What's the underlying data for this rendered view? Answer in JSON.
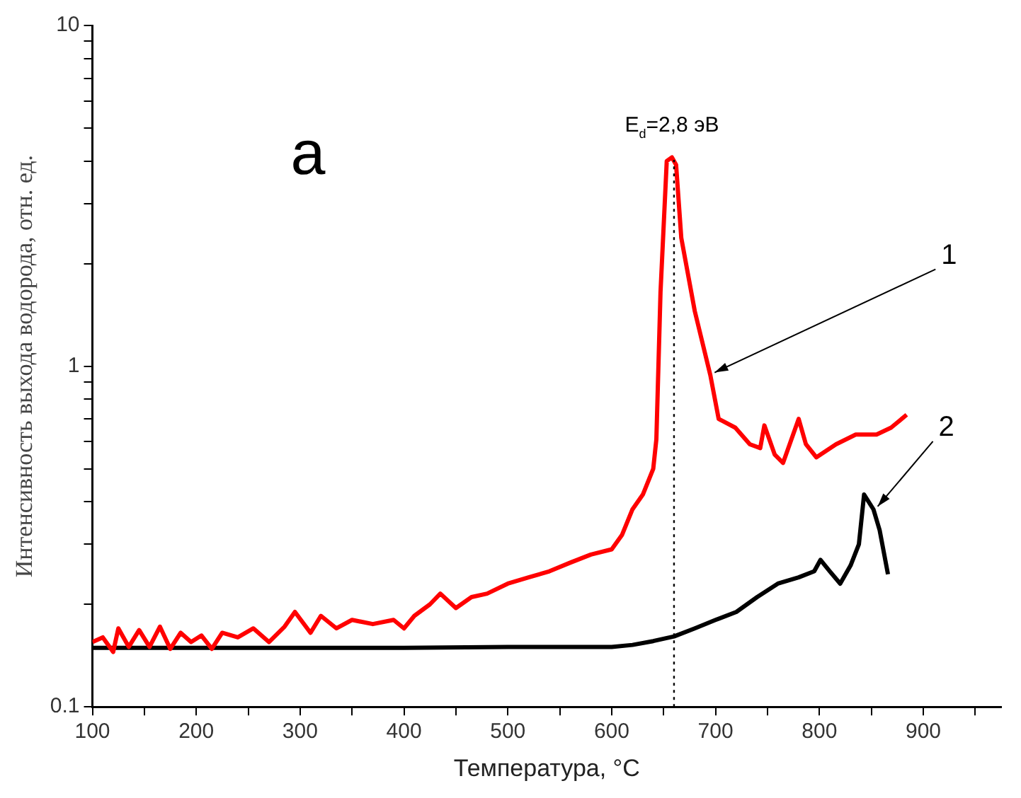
{
  "chart_data": {
    "type": "line",
    "xlabel": "Температура, °C",
    "ylabel": "Интенсивность выхода водорода, отн. ед.",
    "log": "y",
    "grid": false,
    "legend": false,
    "marker": "none",
    "line_style": "solid",
    "xlim": [
      100,
      975
    ],
    "xticks": [
      100,
      {
        "value": 150,
        "label": null
      },
      200,
      {
        "value": 250,
        "label": null
      },
      300,
      {
        "value": 350,
        "label": null
      },
      400,
      {
        "value": 450,
        "label": null
      },
      500,
      {
        "value": 550,
        "label": null
      },
      600,
      {
        "value": 650,
        "label": null
      },
      700,
      {
        "value": 750,
        "label": null
      },
      800,
      {
        "value": 850,
        "label": null
      },
      900,
      {
        "value": 950,
        "label": null
      }
    ],
    "ylim": [
      0.1,
      10
    ],
    "yticks": [
      0.1,
      {
        "value": 0.2,
        "label": null
      },
      {
        "value": 0.3,
        "label": null
      },
      {
        "value": 0.4,
        "label": null
      },
      {
        "value": 0.5,
        "label": null
      },
      {
        "value": 0.6,
        "label": null
      },
      {
        "value": 0.7,
        "label": null
      },
      {
        "value": 0.8,
        "label": null
      },
      {
        "value": 0.9,
        "label": null
      },
      1,
      {
        "value": 2,
        "label": null
      },
      {
        "value": 3,
        "label": null
      },
      {
        "value": 4,
        "label": null
      },
      {
        "value": 5,
        "label": null
      },
      {
        "value": 6,
        "label": null
      },
      {
        "value": 7,
        "label": null
      },
      {
        "value": 8,
        "label": null
      },
      {
        "value": 9,
        "label": null
      },
      10
    ],
    "series": [
      {
        "color": "#ff0000",
        "x": [
          100,
          110,
          120,
          125,
          135,
          145,
          155,
          165,
          175,
          185,
          195,
          205,
          215,
          225,
          240,
          255,
          270,
          285,
          295,
          310,
          320,
          335,
          350,
          370,
          390,
          400,
          410,
          425,
          435,
          450,
          465,
          480,
          500,
          520,
          540,
          560,
          580,
          600,
          610,
          620,
          630,
          640,
          643,
          647,
          653,
          658,
          662,
          667,
          680,
          695,
          703,
          719,
          733,
          743,
          747,
          757,
          765,
          780,
          787,
          797,
          816,
          835,
          855,
          869,
          884
        ],
        "values": [
          0.155,
          0.16,
          0.145,
          0.17,
          0.15,
          0.168,
          0.15,
          0.172,
          0.148,
          0.165,
          0.155,
          0.162,
          0.148,
          0.165,
          0.16,
          0.17,
          0.155,
          0.172,
          0.19,
          0.165,
          0.185,
          0.17,
          0.18,
          0.175,
          0.18,
          0.17,
          0.185,
          0.2,
          0.215,
          0.195,
          0.21,
          0.215,
          0.23,
          0.24,
          0.25,
          0.265,
          0.28,
          0.29,
          0.32,
          0.38,
          0.42,
          0.5,
          0.61,
          1.65,
          4.0,
          4.1,
          3.9,
          2.38,
          1.45,
          0.94,
          0.7,
          0.66,
          0.59,
          0.575,
          0.67,
          0.55,
          0.52,
          0.7,
          0.59,
          0.54,
          0.59,
          0.63,
          0.63,
          0.66,
          0.72
        ]
      },
      {
        "color": "#000000",
        "x": [
          100,
          200,
          300,
          400,
          500,
          600,
          620,
          640,
          660,
          680,
          700,
          720,
          740,
          760,
          780,
          795,
          801,
          810,
          820,
          830,
          838,
          843,
          852,
          858,
          866
        ],
        "values": [
          0.149,
          0.149,
          0.149,
          0.149,
          0.15,
          0.15,
          0.152,
          0.156,
          0.161,
          0.17,
          0.18,
          0.19,
          0.21,
          0.23,
          0.24,
          0.25,
          0.27,
          0.25,
          0.23,
          0.26,
          0.3,
          0.42,
          0.38,
          0.33,
          0.245
        ]
      }
    ],
    "ref_lines": [
      {
        "axis": "x",
        "value": 660,
        "color": "#000000",
        "line_style": "dotted"
      }
    ],
    "annotations": [
      "а",
      {
        "text": "E$_{d}$=2,8 эВ",
        "x": 658,
        "y": 4.1
      },
      {
        "text": "1",
        "x": 695,
        "y": 0.94
      },
      {
        "text": "2",
        "x": 852,
        "y": 0.38
      }
    ]
  }
}
